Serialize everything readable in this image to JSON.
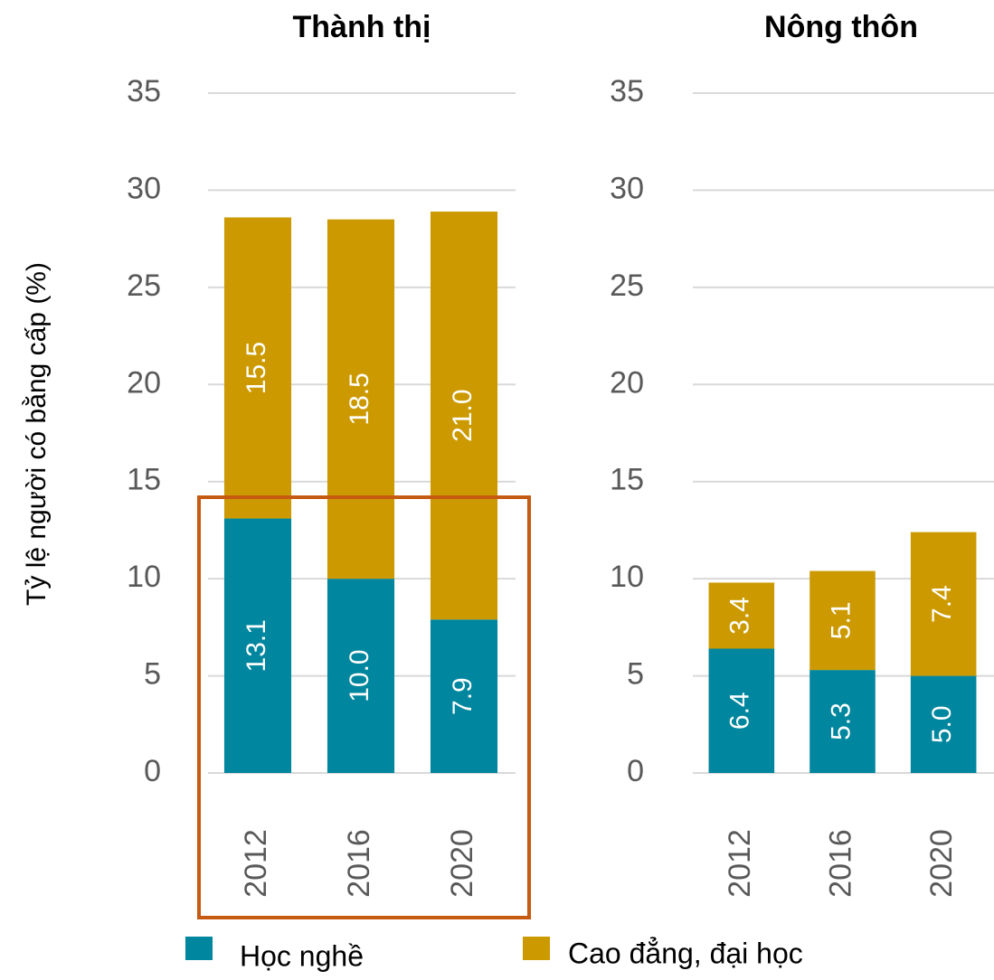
{
  "chart_data": [
    {
      "type": "bar",
      "stacked": true,
      "title": "Thành thị",
      "ylabel": "Tỷ lệ người có bằng cấp (%)",
      "categories": [
        "2012",
        "2016",
        "2020"
      ],
      "series": [
        {
          "name": "Học nghề",
          "color": "#00869e",
          "values": [
            13.1,
            10.0,
            7.9
          ],
          "value_labels": [
            "13.1",
            "10.0",
            "7.9"
          ]
        },
        {
          "name": "Cao đẳng, đại học",
          "color": "#cc9a00",
          "values": [
            15.5,
            18.5,
            21.0
          ],
          "value_labels": [
            "15.5",
            "18.5",
            "21.0"
          ]
        }
      ],
      "ylim": [
        0,
        35
      ],
      "yticks": [
        0,
        5,
        10,
        15,
        20,
        25,
        30,
        35
      ],
      "grid": true
    },
    {
      "type": "bar",
      "stacked": true,
      "title": "Nông thôn",
      "categories": [
        "2012",
        "2016",
        "2020"
      ],
      "series": [
        {
          "color": "#00869e",
          "values": [
            6.4,
            5.3,
            5.0
          ],
          "value_labels": [
            "6.4",
            "5.3",
            "5.0"
          ]
        },
        {
          "color": "#cc9a00",
          "values": [
            3.4,
            5.1,
            7.4
          ],
          "value_labels": [
            "3.4",
            "5.1",
            "7.4"
          ]
        }
      ],
      "ylim": [
        0,
        35
      ],
      "yticks": [
        0,
        5,
        10,
        15,
        20,
        25,
        30,
        35
      ],
      "grid": true
    }
  ]
}
